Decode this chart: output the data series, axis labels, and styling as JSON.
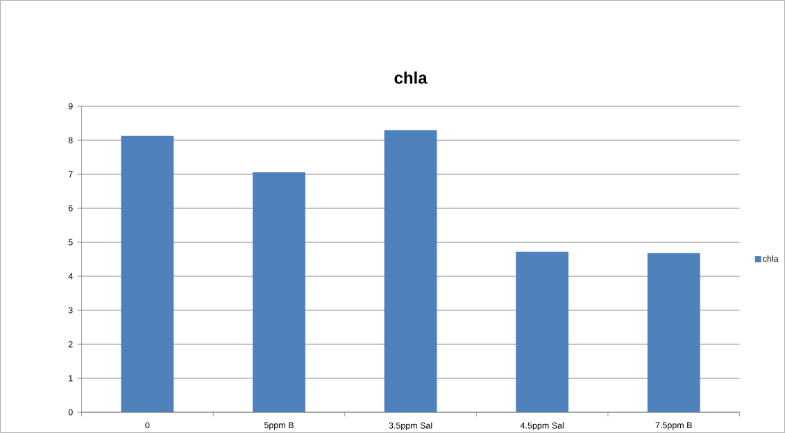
{
  "chart_data": {
    "type": "bar",
    "title": "chla",
    "categories": [
      "0",
      "5ppm B",
      "3.5ppm Sal",
      "4.5ppm Sal",
      "7.5ppm B"
    ],
    "series": [
      {
        "name": "chla",
        "color": "#4f81bd",
        "values": [
          8.13,
          7.06,
          8.3,
          4.72,
          4.68
        ]
      }
    ],
    "ylim": [
      0,
      9
    ],
    "yticks": [
      0,
      1,
      2,
      3,
      4,
      5,
      6,
      7,
      8,
      9
    ],
    "grid": "y",
    "legend": "right"
  }
}
